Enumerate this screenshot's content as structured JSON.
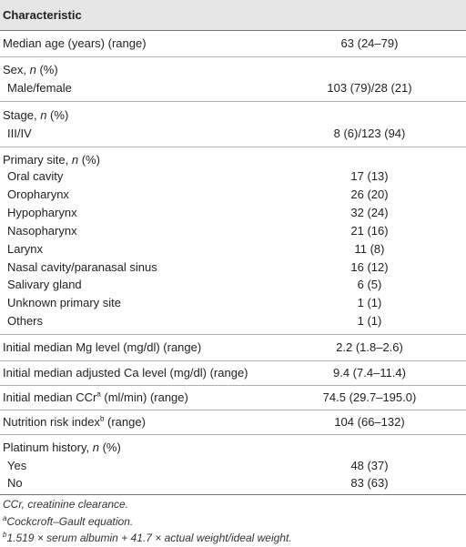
{
  "header": {
    "characteristic": "Characteristic"
  },
  "rows": {
    "age": {
      "label": "Median age (years) (range)",
      "value": "63 (24–79)"
    },
    "sex": {
      "label": "Sex, ",
      "n": "n",
      "pct": " (%)",
      "sub": {
        "label": "Male/female",
        "value": "103 (79)/28 (21)"
      }
    },
    "stage": {
      "label": "Stage, ",
      "n": "n",
      "pct": " (%)",
      "sub": {
        "label": "III/IV",
        "value": "8 (6)/123 (94)"
      }
    },
    "primary": {
      "label": "Primary site, ",
      "n": "n",
      "pct": " (%)",
      "items": [
        {
          "label": "Oral cavity",
          "value": "17 (13)"
        },
        {
          "label": "Oropharynx",
          "value": "26 (20)"
        },
        {
          "label": "Hypopharynx",
          "value": "32 (24)"
        },
        {
          "label": "Nasopharynx",
          "value": "21 (16)"
        },
        {
          "label": "Larynx",
          "value": "11 (8)"
        },
        {
          "label": "Nasal cavity/paranasal sinus",
          "value": "16 (12)"
        },
        {
          "label": "Salivary gland",
          "value": "6 (5)"
        },
        {
          "label": "Unknown primary site",
          "value": "1 (1)"
        },
        {
          "label": "Others",
          "value": "1 (1)"
        }
      ]
    },
    "mg": {
      "label": "Initial median Mg level (mg/dl) (range)",
      "value": "2.2 (1.8–2.6)"
    },
    "ca": {
      "label": "Initial median adjusted Ca level (mg/dl) (range)",
      "value": "9.4 (7.4–11.4)"
    },
    "ccr": {
      "label_pre": "Initial median CCr",
      "sup": "a",
      "label_post": " (ml/min) (range)",
      "value": "74.5 (29.7–195.0)"
    },
    "nri": {
      "label_pre": "Nutrition risk index",
      "sup": "b",
      "label_post": " (range)",
      "value": "104 (66–132)"
    },
    "platinum": {
      "label": "Platinum history, ",
      "n": "n",
      "pct": " (%)",
      "yes": {
        "label": "Yes",
        "value": "48 (37)"
      },
      "no": {
        "label": "No",
        "value": "83 (63)"
      }
    }
  },
  "footnotes": {
    "ccr": "CCr, creatinine clearance.",
    "a_sup": "a",
    "a_text": "Cockcroft–Gault equation.",
    "b_sup": "b",
    "b_text": "1.519 × serum albumin + 41.7 × actual weight/ideal weight."
  }
}
